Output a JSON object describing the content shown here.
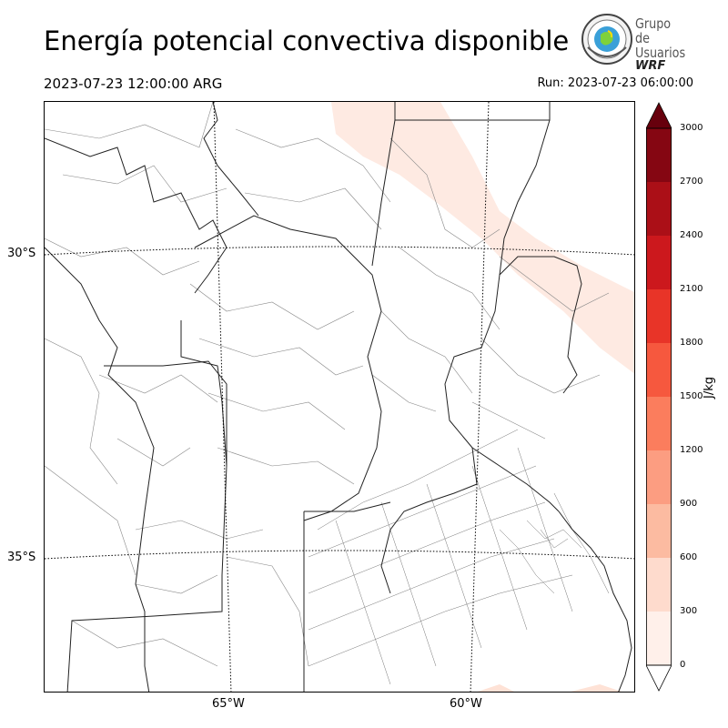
{
  "header": {
    "title": "Energía potencial convectiva disponible",
    "valid_time": "2023-07-23 12:00:00 ARG",
    "run": "Run: 2023-07-23 06:00:00"
  },
  "logo": {
    "line1": "Grupo de",
    "line2": "Usuarios",
    "line3": "WRF"
  },
  "map": {
    "lat_labels": [
      "30°S",
      "35°S"
    ],
    "lon_labels": [
      "65°W",
      "60°W"
    ]
  },
  "colorbar": {
    "unit_label": "J/kg",
    "ticks": [
      "0",
      "300",
      "600",
      "900",
      "1200",
      "1500",
      "1800",
      "2100",
      "2400",
      "2700",
      "3000"
    ],
    "colors": [
      "#fff0ea",
      "#fedbcd",
      "#fcbba1",
      "#fc9d81",
      "#fb7d5d",
      "#f6583e",
      "#e83428",
      "#cc181d",
      "#ab0f17",
      "#850612"
    ],
    "extend_low_color": "#ffffff",
    "extend_high_color": "#67000d"
  }
}
